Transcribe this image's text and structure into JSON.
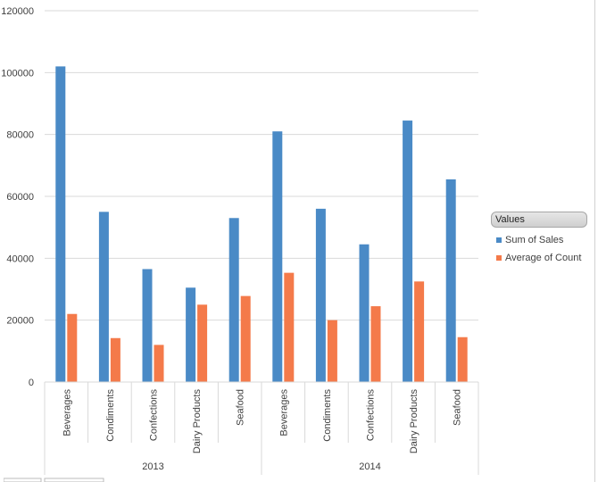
{
  "chart_data": {
    "type": "bar",
    "groups": [
      {
        "label": "2013",
        "categories": [
          "Beverages",
          "Condiments",
          "Confections",
          "Dairy Products",
          "Seafood"
        ]
      },
      {
        "label": "2014",
        "categories": [
          "Beverages",
          "Condiments",
          "Confections",
          "Dairy Products",
          "Seafood"
        ]
      }
    ],
    "series": [
      {
        "name": "Sum of Sales",
        "color": "#4a8ac6",
        "values": [
          102000,
          55000,
          36500,
          30500,
          53000,
          81000,
          56000,
          44500,
          84500,
          65500
        ]
      },
      {
        "name": "Average of Count",
        "color": "#f47a4a",
        "values": [
          22000,
          14200,
          12000,
          25000,
          27800,
          35300,
          20000,
          24500,
          32500,
          14500
        ]
      }
    ],
    "yticks": [
      "0",
      "20000",
      "40000",
      "60000",
      "80000",
      "100000",
      "120000"
    ],
    "ylim": [
      0,
      120000
    ],
    "grid": true,
    "legend": {
      "title": "Values",
      "position": "right"
    }
  }
}
